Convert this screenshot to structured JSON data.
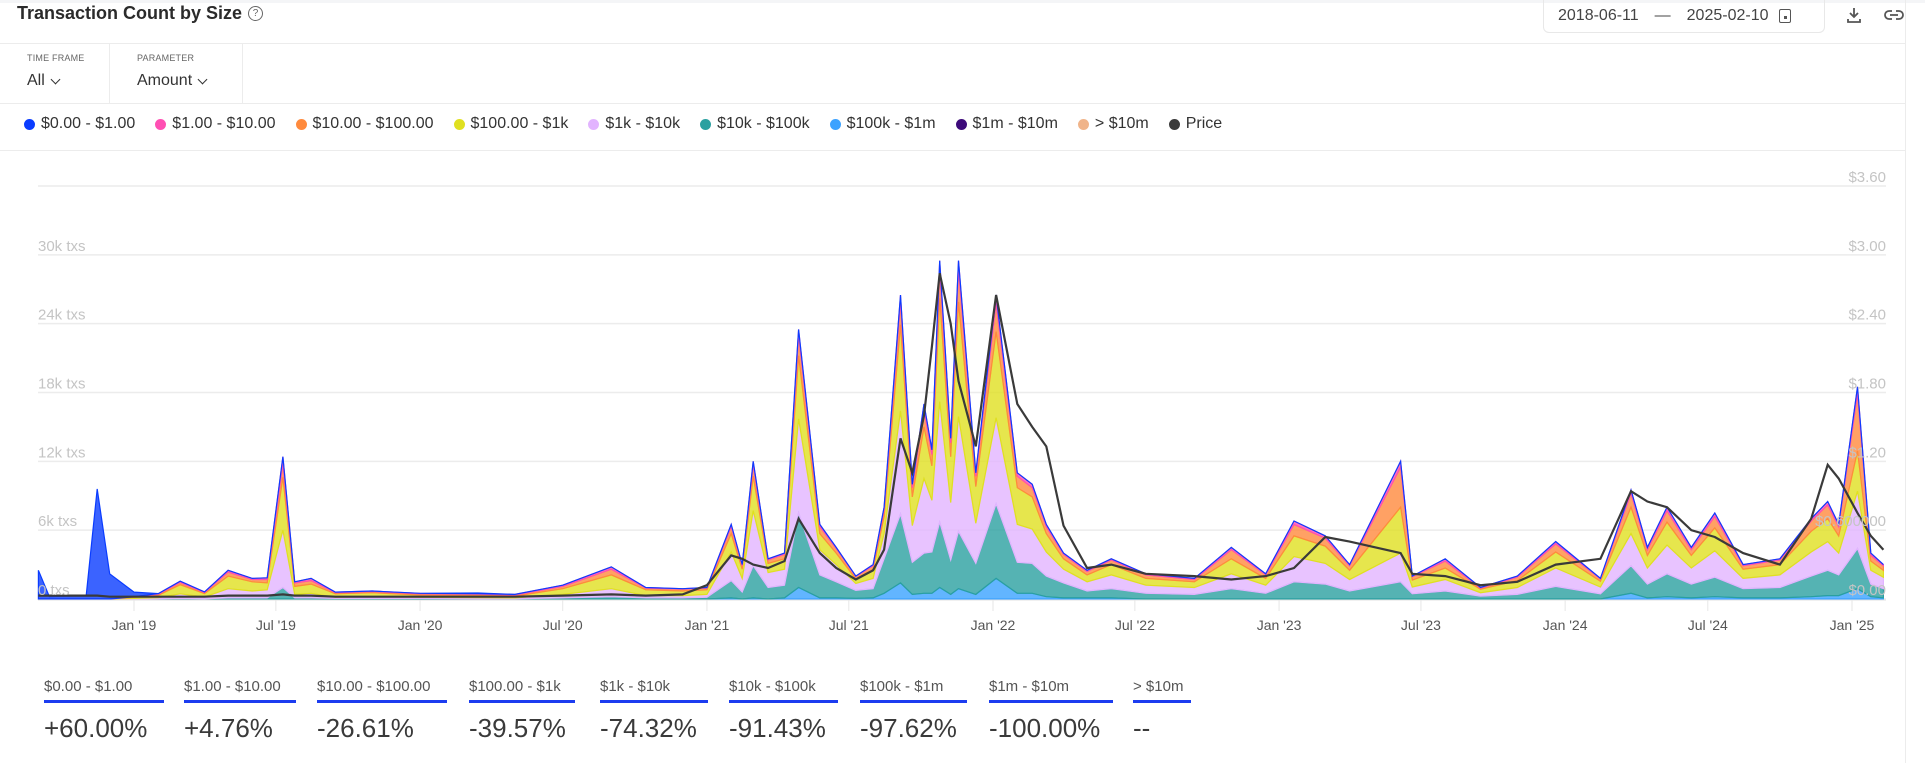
{
  "header": {
    "title": "Transaction Count by Size",
    "help_icon": "question-circle-icon",
    "date_from": "2018-06-11",
    "date_sep": "—",
    "date_to": "2025-02-10",
    "calendar_icon": "calendar-icon",
    "download_icon": "download-icon",
    "link_icon": "link-icon"
  },
  "filters": {
    "time_frame": {
      "label": "TIME FRAME",
      "value": "All"
    },
    "parameter": {
      "label": "PARAMETER",
      "value": "Amount"
    }
  },
  "colors": {
    "s0": "#0a3cff",
    "s1": "#ff4fb3",
    "s2": "#ff8a3d",
    "s3": "#e0e020",
    "s4": "#e2b4ff",
    "s5": "#2aa0a0",
    "s6": "#3ba2ff",
    "s7": "#3d0a7a",
    "s8": "#f0b48a",
    "price": "#3a3a3a"
  },
  "legend": [
    {
      "key": "s0",
      "label": "$0.00 - $1.00"
    },
    {
      "key": "s1",
      "label": "$1.00 - $10.00"
    },
    {
      "key": "s2",
      "label": "$10.00 - $100.00"
    },
    {
      "key": "s3",
      "label": "$100.00 - $1k"
    },
    {
      "key": "s4",
      "label": "$1k - $10k"
    },
    {
      "key": "s5",
      "label": "$10k - $100k"
    },
    {
      "key": "s6",
      "label": "$100k - $1m"
    },
    {
      "key": "s7",
      "label": "$1m - $10m"
    },
    {
      "key": "s8",
      "label": "> $10m"
    },
    {
      "key": "price",
      "label": "Price"
    }
  ],
  "chart_data": {
    "type": "area",
    "stacked": true,
    "grid": true,
    "legend_placement": "top",
    "y_left": {
      "range": [
        0,
        36000
      ],
      "ticks": [
        0,
        6000,
        12000,
        18000,
        24000,
        30000
      ],
      "tick_labels": [
        "0 txs",
        "6k txs",
        "12k txs",
        "18k txs",
        "24k txs",
        "30k txs"
      ]
    },
    "y_right": {
      "range": [
        0,
        3.6
      ],
      "ticks": [
        0,
        0.6,
        1.2,
        1.8,
        2.4,
        3.0,
        3.6
      ],
      "tick_labels": [
        "$0.00",
        "$0.600000",
        "$1.20",
        "$1.80",
        "$2.40",
        "$3.00",
        "$3.60"
      ]
    },
    "x_ticks": [
      {
        "date": "2019-01-01",
        "label": "Jan '19"
      },
      {
        "date": "2019-07-01",
        "label": "Jul '19"
      },
      {
        "date": "2020-01-01",
        "label": "Jan '20"
      },
      {
        "date": "2020-07-01",
        "label": "Jul '20"
      },
      {
        "date": "2021-01-01",
        "label": "Jan '21"
      },
      {
        "date": "2021-07-01",
        "label": "Jul '21"
      },
      {
        "date": "2022-01-01",
        "label": "Jan '22"
      },
      {
        "date": "2022-07-01",
        "label": "Jul '22"
      },
      {
        "date": "2023-01-01",
        "label": "Jan '23"
      },
      {
        "date": "2023-07-01",
        "label": "Jul '23"
      },
      {
        "date": "2024-01-01",
        "label": "Jan '24"
      },
      {
        "date": "2024-07-01",
        "label": "Jul '24"
      },
      {
        "date": "2025-01-01",
        "label": "Jan '25"
      }
    ],
    "stack_order_bottom_to_top": [
      "s8",
      "s7",
      "s6",
      "s5",
      "s4",
      "s3",
      "s2",
      "s1",
      "s0"
    ],
    "columns": [
      "date",
      "s0",
      "s1",
      "s2",
      "s3",
      "s4",
      "s5",
      "s6",
      "s7",
      "s8",
      "price"
    ],
    "rows": [
      [
        "2018-09-01",
        2500,
        0,
        0,
        0,
        0,
        0,
        0,
        0,
        0,
        0.03
      ],
      [
        "2018-09-15",
        200,
        0,
        0,
        0,
        0,
        0,
        0,
        0,
        0,
        0.03
      ],
      [
        "2018-11-01",
        300,
        0,
        0,
        0,
        0,
        0,
        0,
        0,
        0,
        0.03
      ],
      [
        "2018-11-15",
        9600,
        0,
        0,
        0,
        0,
        0,
        0,
        0,
        0,
        0.03
      ],
      [
        "2018-12-01",
        2200,
        0,
        0,
        0,
        0,
        0,
        0,
        0,
        0,
        0.02
      ],
      [
        "2019-01-01",
        400,
        0,
        50,
        100,
        50,
        0,
        0,
        0,
        0,
        0.02
      ],
      [
        "2019-02-01",
        0,
        50,
        100,
        200,
        100,
        20,
        0,
        0,
        0,
        0.02
      ],
      [
        "2019-03-01",
        0,
        100,
        200,
        800,
        400,
        50,
        0,
        0,
        0,
        0.02
      ],
      [
        "2019-04-01",
        0,
        50,
        100,
        300,
        150,
        20,
        0,
        0,
        0,
        0.02
      ],
      [
        "2019-05-01",
        0,
        150,
        350,
        1100,
        800,
        100,
        0,
        0,
        0,
        0.03
      ],
      [
        "2019-06-01",
        0,
        100,
        200,
        800,
        600,
        100,
        0,
        0,
        0,
        0.03
      ],
      [
        "2019-06-20",
        0,
        150,
        300,
        600,
        700,
        100,
        0,
        0,
        0,
        0.03
      ],
      [
        "2019-07-10",
        0,
        600,
        1200,
        4600,
        5000,
        1000,
        0,
        0,
        0,
        0.04
      ],
      [
        "2019-07-25",
        0,
        100,
        300,
        700,
        300,
        100,
        0,
        0,
        0,
        0.03
      ],
      [
        "2019-08-15",
        0,
        200,
        300,
        800,
        400,
        100,
        0,
        0,
        0,
        0.03
      ],
      [
        "2019-09-15",
        0,
        50,
        100,
        300,
        100,
        50,
        0,
        0,
        0,
        0.02
      ],
      [
        "2019-11-01",
        0,
        50,
        100,
        350,
        150,
        50,
        0,
        0,
        0,
        0.02
      ],
      [
        "2020-01-01",
        0,
        50,
        100,
        200,
        100,
        50,
        0,
        0,
        0,
        0.02
      ],
      [
        "2020-03-15",
        50,
        50,
        100,
        200,
        100,
        20,
        0,
        0,
        0,
        0.02
      ],
      [
        "2020-05-01",
        0,
        50,
        100,
        150,
        80,
        20,
        0,
        0,
        0,
        0.02
      ],
      [
        "2020-07-01",
        0,
        100,
        200,
        500,
        300,
        100,
        0,
        0,
        0,
        0.03
      ],
      [
        "2020-09-01",
        0,
        200,
        500,
        1200,
        700,
        200,
        0,
        0,
        0,
        0.04
      ],
      [
        "2020-10-15",
        0,
        50,
        150,
        500,
        200,
        100,
        0,
        0,
        0,
        0.03
      ],
      [
        "2020-12-01",
        0,
        50,
        150,
        400,
        200,
        100,
        0,
        0,
        0,
        0.04
      ],
      [
        "2021-01-01",
        0,
        50,
        150,
        400,
        250,
        150,
        0,
        0,
        0,
        0.12
      ],
      [
        "2021-02-01",
        0,
        200,
        600,
        1600,
        2500,
        1500,
        100,
        0,
        0,
        0.38
      ],
      [
        "2021-02-15",
        0,
        100,
        300,
        800,
        1200,
        600,
        0,
        0,
        0,
        0.35
      ],
      [
        "2021-03-01",
        0,
        300,
        1000,
        3000,
        4800,
        2800,
        100,
        0,
        0,
        0.3
      ],
      [
        "2021-03-20",
        0,
        100,
        300,
        800,
        1300,
        1000,
        0,
        0,
        0,
        0.27
      ],
      [
        "2021-04-10",
        0,
        100,
        400,
        900,
        1400,
        1100,
        100,
        0,
        0,
        0.33
      ],
      [
        "2021-04-28",
        0,
        500,
        1800,
        5500,
        8200,
        6500,
        1000,
        0,
        0,
        0.7
      ],
      [
        "2021-05-25",
        0,
        200,
        600,
        1400,
        2200,
        2000,
        100,
        0,
        0,
        0.4
      ],
      [
        "2021-06-15",
        0,
        100,
        400,
        1000,
        1500,
        1400,
        100,
        0,
        0,
        0.27
      ],
      [
        "2021-07-10",
        0,
        50,
        200,
        400,
        600,
        700,
        50,
        0,
        0,
        0.17
      ],
      [
        "2021-08-01",
        0,
        100,
        300,
        800,
        900,
        800,
        100,
        0,
        0,
        0.25
      ],
      [
        "2021-08-15",
        0,
        200,
        600,
        1500,
        2200,
        3000,
        500,
        0,
        0,
        0.43
      ],
      [
        "2021-09-05",
        0,
        600,
        2000,
        7500,
        9000,
        6000,
        1400,
        0,
        0,
        1.4
      ],
      [
        "2021-09-20",
        0,
        300,
        800,
        2500,
        3200,
        2800,
        400,
        0,
        0,
        1.1
      ],
      [
        "2021-10-05",
        0,
        500,
        1500,
        4500,
        6500,
        3500,
        500,
        0,
        0,
        1.6
      ],
      [
        "2021-10-15",
        0,
        400,
        1000,
        3000,
        4500,
        3600,
        500,
        0,
        0,
        2.2
      ],
      [
        "2021-10-25",
        0,
        800,
        2500,
        9000,
        10500,
        5700,
        1000,
        0,
        0,
        2.84
      ],
      [
        "2021-11-08",
        0,
        400,
        1200,
        4000,
        5000,
        3000,
        400,
        0,
        0,
        2.4
      ],
      [
        "2021-11-18",
        0,
        800,
        2800,
        10000,
        10000,
        5000,
        900,
        0,
        0,
        1.9
      ],
      [
        "2021-12-10",
        0,
        300,
        900,
        3200,
        3500,
        2700,
        400,
        0,
        0,
        1.33
      ],
      [
        "2022-01-05",
        0,
        700,
        2500,
        7500,
        7500,
        6500,
        1800,
        0,
        0,
        2.65
      ],
      [
        "2022-02-01",
        0,
        300,
        1000,
        3200,
        3300,
        2700,
        500,
        0,
        0,
        1.7
      ],
      [
        "2022-02-20",
        0,
        300,
        800,
        2800,
        3000,
        2600,
        500,
        0,
        0,
        1.5
      ],
      [
        "2022-03-10",
        0,
        200,
        600,
        1600,
        2100,
        1800,
        200,
        0,
        0,
        1.33
      ],
      [
        "2022-04-01",
        0,
        100,
        400,
        900,
        1200,
        1300,
        100,
        0,
        0,
        0.64
      ],
      [
        "2022-05-01",
        0,
        100,
        300,
        600,
        800,
        600,
        100,
        0,
        0,
        0.27
      ],
      [
        "2022-06-01",
        0,
        100,
        400,
        900,
        1200,
        800,
        100,
        0,
        0,
        0.3
      ],
      [
        "2022-07-15",
        0,
        100,
        300,
        600,
        700,
        500,
        0,
        0,
        0,
        0.22
      ],
      [
        "2022-09-15",
        0,
        100,
        200,
        500,
        600,
        400,
        0,
        0,
        0,
        0.2
      ],
      [
        "2022-11-01",
        0,
        200,
        800,
        1300,
        1300,
        900,
        0,
        0,
        0,
        0.17
      ],
      [
        "2022-12-15",
        0,
        100,
        300,
        600,
        700,
        500,
        0,
        0,
        0,
        0.2
      ],
      [
        "2023-01-20",
        0,
        300,
        1000,
        1800,
        2200,
        1500,
        0,
        0,
        0,
        0.27
      ],
      [
        "2023-03-01",
        0,
        200,
        700,
        1500,
        1800,
        1300,
        0,
        0,
        0,
        0.54
      ],
      [
        "2023-04-01",
        0,
        100,
        400,
        800,
        1000,
        700,
        0,
        0,
        0,
        0.5
      ],
      [
        "2023-06-05",
        0,
        500,
        3500,
        4000,
        2500,
        1500,
        0,
        0,
        0,
        0.4
      ],
      [
        "2023-06-20",
        0,
        50,
        300,
        600,
        600,
        450,
        0,
        0,
        0,
        0.22
      ],
      [
        "2023-08-01",
        0,
        200,
        600,
        1000,
        1000,
        700,
        0,
        0,
        0,
        0.2
      ],
      [
        "2023-09-15",
        0,
        50,
        100,
        300,
        300,
        250,
        0,
        0,
        0,
        0.12
      ],
      [
        "2023-11-01",
        0,
        100,
        300,
        600,
        600,
        400,
        0,
        0,
        0,
        0.15
      ],
      [
        "2023-12-20",
        0,
        200,
        700,
        1400,
        1600,
        1100,
        0,
        0,
        0,
        0.3
      ],
      [
        "2024-02-15",
        0,
        50,
        200,
        500,
        600,
        450,
        0,
        0,
        0,
        0.35
      ],
      [
        "2024-03-25",
        0,
        300,
        1200,
        2300,
        2800,
        2400,
        500,
        0,
        0,
        0.94
      ],
      [
        "2024-04-15",
        0,
        200,
        500,
        1100,
        1400,
        1200,
        100,
        0,
        0,
        0.85
      ],
      [
        "2024-05-10",
        0,
        300,
        1000,
        2000,
        2500,
        2000,
        200,
        0,
        0,
        0.8
      ],
      [
        "2024-06-10",
        0,
        200,
        500,
        1100,
        1400,
        1200,
        100,
        0,
        0,
        0.6
      ],
      [
        "2024-07-10",
        0,
        300,
        1000,
        2000,
        2300,
        1700,
        200,
        0,
        0,
        0.54
      ],
      [
        "2024-08-15",
        0,
        100,
        300,
        800,
        900,
        800,
        100,
        0,
        0,
        0.4
      ],
      [
        "2024-10-01",
        0,
        100,
        400,
        900,
        1100,
        900,
        100,
        0,
        0,
        0.3
      ],
      [
        "2024-11-10",
        0,
        200,
        900,
        1800,
        2100,
        1800,
        200,
        0,
        0,
        0.7
      ],
      [
        "2024-12-01",
        0,
        300,
        1200,
        2000,
        2500,
        2200,
        300,
        0,
        0,
        1.17
      ],
      [
        "2024-12-15",
        0,
        200,
        800,
        1500,
        1900,
        1800,
        300,
        0,
        0,
        1.05
      ],
      [
        "2025-01-08",
        0,
        600,
        5000,
        3500,
        5000,
        3500,
        900,
        0,
        0,
        0.75
      ],
      [
        "2025-01-25",
        0,
        200,
        500,
        800,
        1200,
        1100,
        200,
        0,
        0,
        0.55
      ],
      [
        "2025-02-10",
        0,
        100,
        400,
        600,
        1000,
        800,
        100,
        0,
        0,
        0.43
      ]
    ]
  },
  "stats": [
    {
      "label": "$0.00 - $1.00",
      "value": "+60.00%"
    },
    {
      "label": "$1.00 - $10.00",
      "value": "+4.76%"
    },
    {
      "label": "$10.00 - $100.00",
      "value": "-26.61%"
    },
    {
      "label": "$100.00 - $1k",
      "value": "-39.57%"
    },
    {
      "label": "$1k - $10k",
      "value": "-74.32%"
    },
    {
      "label": "$10k - $100k",
      "value": "-91.43%"
    },
    {
      "label": "$100k - $1m",
      "value": "-97.62%"
    },
    {
      "label": "$1m - $10m",
      "value": "-100.00%"
    },
    {
      "label": "> $10m",
      "value": "--"
    }
  ]
}
